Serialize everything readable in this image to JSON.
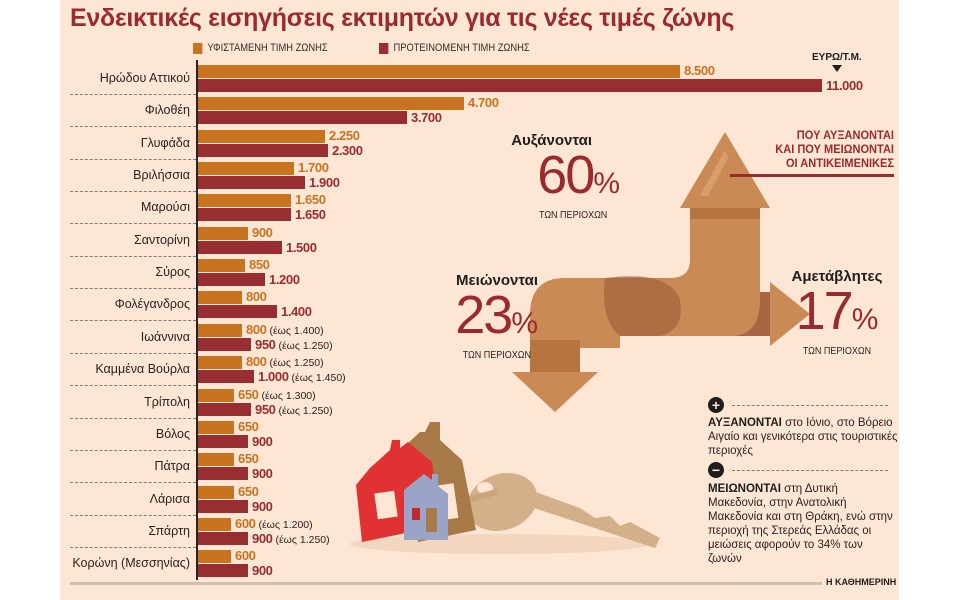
{
  "title": "Ενδεικτικές εισηγήσεις εκτιμητών για τις νέες τιμές ζώνης",
  "legend": {
    "existing": {
      "label": "ΥΦΙΣΤΑΜΕΝΗ ΤΙΜΗ ΖΩΝΗΣ",
      "color": "#c8731f"
    },
    "proposed": {
      "label": "ΠΡΟΤΕΙΝΟΜΕΝΗ ΤΙΜΗ ΖΩΝΗΣ",
      "color": "#982d32"
    }
  },
  "unit_label": "ΕΥΡΩ/Τ.Μ.",
  "rows": [
    {
      "area": "Ηρώδου Αττικού",
      "existing": "8.500",
      "proposed": "11.000",
      "existing_note": "",
      "proposed_note": ""
    },
    {
      "area": "Φιλοθέη",
      "existing": "4.700",
      "proposed": "3.700",
      "existing_note": "",
      "proposed_note": ""
    },
    {
      "area": "Γλυφάδα",
      "existing": "2.250",
      "proposed": "2.300",
      "existing_note": "",
      "proposed_note": ""
    },
    {
      "area": "Βριλήσσια",
      "existing": "1.700",
      "proposed": "1.900",
      "existing_note": "",
      "proposed_note": ""
    },
    {
      "area": "Μαρούσι",
      "existing": "1.650",
      "proposed": "1.650",
      "existing_note": "",
      "proposed_note": ""
    },
    {
      "area": "Σαντορίνη",
      "existing": "900",
      "proposed": "1.500",
      "existing_note": "",
      "proposed_note": ""
    },
    {
      "area": "Σύρος",
      "existing": "850",
      "proposed": "1.200",
      "existing_note": "",
      "proposed_note": ""
    },
    {
      "area": "Φολέγανδρος",
      "existing": "800",
      "proposed": "1.400",
      "existing_note": "",
      "proposed_note": ""
    },
    {
      "area": "Ιωάννινα",
      "existing": "800",
      "proposed": "950",
      "existing_note": "(έως 1.400)",
      "proposed_note": "(έως 1.250)"
    },
    {
      "area": "Καμμένα Βούρλα",
      "existing": "800",
      "proposed": "1.000",
      "existing_note": "(έως 1.250)",
      "proposed_note": "(έως 1.450)"
    },
    {
      "area": "Τρίπολη",
      "existing": "650",
      "proposed": "950",
      "existing_note": "(έως 1.300)",
      "proposed_note": "(έως 1.250)"
    },
    {
      "area": "Βόλος",
      "existing": "650",
      "proposed": "900",
      "existing_note": "",
      "proposed_note": ""
    },
    {
      "area": "Πάτρα",
      "existing": "650",
      "proposed": "900",
      "existing_note": "",
      "proposed_note": ""
    },
    {
      "area": "Λάρισα",
      "existing": "650",
      "proposed": "900",
      "existing_note": "",
      "proposed_note": ""
    },
    {
      "area": "Σπάρτη",
      "existing": "600",
      "proposed": "900",
      "existing_note": "(έως 1.200)",
      "proposed_note": "(έως 1.250)"
    },
    {
      "area": "Κορώνη (Μεσσηνίας)",
      "existing": "600",
      "proposed": "900",
      "existing_note": "",
      "proposed_note": ""
    }
  ],
  "stats": {
    "increase": {
      "head": "Αυξάνονται",
      "value": "60",
      "pct": "%",
      "sub": "ΤΩΝ ΠΕΡΙΟΧΩΝ"
    },
    "decrease": {
      "head": "Μειώνονται",
      "value": "23",
      "pct": "%",
      "sub": "ΤΩΝ ΠΕΡΙΟΧΩΝ"
    },
    "unchanged": {
      "head": "Αμετάβλητες",
      "value": "17",
      "pct": "%",
      "sub": "ΤΩΝ ΠΕΡΙΟΧΩΝ"
    }
  },
  "side_title": [
    "ΠΟΥ ΑΥΞΑΝΟΝΤΑΙ",
    "ΚΑΙ ΠΟΥ ΜΕΙΩΝΟΝΤΑΙ",
    "ΟΙ ΑΝΤΙΚΕΙΜΕΝΙΚΕΣ"
  ],
  "notes": {
    "plus": {
      "icon": "plus-circle-icon",
      "bold": "ΑΥΞΑΝΟΝΤΑΙ",
      "text": " στο Ιόνιο, στο Βόρειο Αιγαίο και γενικότερα στις τουριστικές περιοχές"
    },
    "minus": {
      "icon": "minus-circle-icon",
      "bold": "ΜΕΙΩΝΟΝΤΑΙ",
      "text": " στη Δυτική Μακεδονία, στην Ανατολική Μακεδονία και στη Θράκη, ενώ στην περιοχή της Στερεάς Ελλάδας οι μειώσεις αφορούν το 34% των ζωνών"
    }
  },
  "credit": "Η ΚΑΘΗΜΕΡΙΝΗ",
  "chart_data": {
    "type": "bar",
    "orientation": "horizontal",
    "title": "Ενδεικτικές εισηγήσεις εκτιμητών για τις νέες τιμές ζώνης",
    "xlabel": "ΕΥΡΩ/Τ.Μ.",
    "ylabel": "",
    "grid": false,
    "legend_position": "top",
    "categories": [
      "Ηρώδου Αττικού",
      "Φιλοθέη",
      "Γλυφάδα",
      "Βριλήσσια",
      "Μαρούσι",
      "Σαντορίνη",
      "Σύρος",
      "Φολέγανδρος",
      "Ιωάννινα",
      "Καμμένα Βούρλα",
      "Τρίπολη",
      "Βόλος",
      "Πάτρα",
      "Λάρισα",
      "Σπάρτη",
      "Κορώνη (Μεσσηνίας)"
    ],
    "series": [
      {
        "name": "ΥΦΙΣΤΑΜΕΝΗ ΤΙΜΗ ΖΩΝΗΣ",
        "color": "#c8731f",
        "values": [
          8500,
          4700,
          2250,
          1700,
          1650,
          900,
          850,
          800,
          800,
          800,
          650,
          650,
          650,
          650,
          600,
          600
        ]
      },
      {
        "name": "ΠΡΟΤΕΙΝΟΜΕΝΗ ΤΙΜΗ ΖΩΝΗΣ",
        "color": "#982d32",
        "values": [
          11000,
          3700,
          2300,
          1900,
          1650,
          1500,
          1200,
          1400,
          950,
          1000,
          950,
          900,
          900,
          900,
          900,
          900
        ]
      }
    ],
    "annotations": [
      {
        "category": "Ιωάννινα",
        "series": "ΥΦΙΣΤΑΜΕΝΗ ΤΙΜΗ ΖΩΝΗΣ",
        "text": "(έως 1.400)"
      },
      {
        "category": "Ιωάννινα",
        "series": "ΠΡΟΤΕΙΝΟΜΕΝΗ ΤΙΜΗ ΖΩΝΗΣ",
        "text": "(έως 1.250)"
      },
      {
        "category": "Καμμένα Βούρλα",
        "series": "ΥΦΙΣΤΑΜΕΝΗ ΤΙΜΗ ΖΩΝΗΣ",
        "text": "(έως 1.250)"
      },
      {
        "category": "Καμμένα Βούρλα",
        "series": "ΠΡΟΤΕΙΝΟΜΕΝΗ ΤΙΜΗ ΖΩΝΗΣ",
        "text": "(έως 1.450)"
      },
      {
        "category": "Τρίπολη",
        "series": "ΥΦΙΣΤΑΜΕΝΗ ΤΙΜΗ ΖΩΝΗΣ",
        "text": "(έως 1.300)"
      },
      {
        "category": "Τρίπολη",
        "series": "ΠΡΟΤΕΙΝΟΜΕΝΗ ΤΙΜΗ ΖΩΝΗΣ",
        "text": "(έως 1.250)"
      },
      {
        "category": "Σπάρτη",
        "series": "ΥΦΙΣΤΑΜΕΝΗ ΤΙΜΗ ΖΩΝΗΣ",
        "text": "(έως 1.200)"
      },
      {
        "category": "Σπάρτη",
        "series": "ΠΡΟΤΕΙΝΟΜΕΝΗ ΤΙΜΗ ΖΩΝΗΣ",
        "text": "(έως 1.250)"
      }
    ],
    "summary": [
      {
        "label": "Αυξάνονται",
        "value": 60,
        "unit": "% ΤΩΝ ΠΕΡΙΟΧΩΝ"
      },
      {
        "label": "Μειώνονται",
        "value": 23,
        "unit": "% ΤΩΝ ΠΕΡΙΟΧΩΝ"
      },
      {
        "label": "Αμετάβλητες",
        "value": 17,
        "unit": "% ΤΩΝ ΠΕΡΙΟΧΩΝ"
      }
    ]
  }
}
